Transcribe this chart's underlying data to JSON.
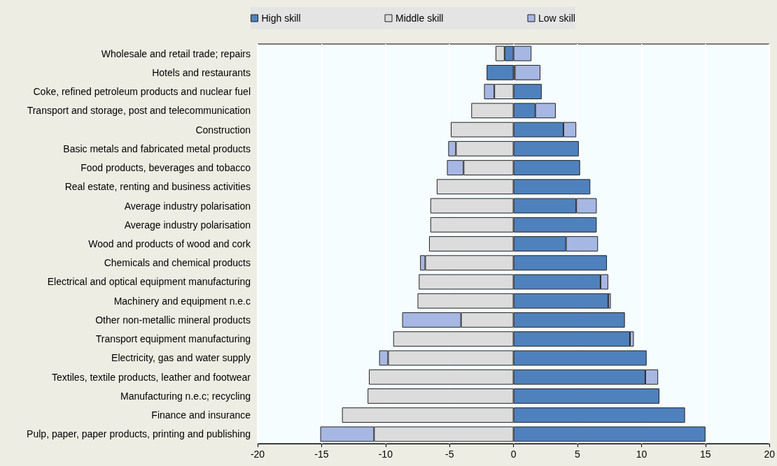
{
  "chart_data": {
    "type": "bar",
    "orientation": "horizontal",
    "stacked": true,
    "legend": "top",
    "grid": "x",
    "categories": [
      "Wholesale and retail trade; repairs",
      "Hotels and restaurants",
      "Coke, refined petroleum products and nuclear fuel",
      "Transport and storage, post and telecommunication",
      "Construction",
      "Basic metals and fabricated metal products",
      "Food products, beverages and tobacco",
      "Real estate, renting and business activities",
      "Average industry polarisation",
      "Average industry polarisation",
      "Wood and products of wood and cork",
      "Chemicals and chemical products",
      "Electrical and optical equipment manufacturing",
      "Machinery and equipment n.e.c",
      "Other non-metallic mineral products",
      "Transport equipment manufacturing",
      "Electricity, gas and water supply",
      "Textiles, textile products, leather and footwear",
      "Manufacturing n.e.c; recycling",
      "Finance and insurance",
      "Pulp, paper, paper products, printing and publishing"
    ],
    "series": [
      {
        "name": "High skill",
        "color": "#4f81bd",
        "values": [
          -0.7,
          -2.1,
          2.2,
          1.7,
          3.9,
          5.1,
          5.2,
          6.0,
          4.9,
          6.5,
          4.1,
          7.3,
          6.8,
          7.4,
          8.7,
          9.1,
          10.4,
          10.3,
          11.4,
          13.4,
          15.0
        ]
      },
      {
        "name": "Middle skill",
        "color": "#dcdcdc",
        "values": [
          -0.7,
          0.1,
          -1.5,
          -3.3,
          -4.9,
          -4.5,
          -3.9,
          -6.0,
          -6.5,
          -6.5,
          -6.6,
          -6.9,
          -7.4,
          -7.5,
          -4.1,
          -9.4,
          -9.8,
          -11.3,
          -11.4,
          -13.4,
          -10.9
        ]
      },
      {
        "name": "Low skill",
        "color": "#a7b7e3",
        "values": [
          1.4,
          2.0,
          -0.8,
          1.6,
          1.0,
          -0.6,
          -1.3,
          null,
          1.6,
          null,
          2.5,
          -0.4,
          0.6,
          0.2,
          -4.6,
          0.3,
          -0.7,
          1.0,
          null,
          null,
          -4.2
        ]
      }
    ],
    "xlim": [
      -20,
      20
    ],
    "xticks": [
      -20,
      -15,
      -10,
      -5,
      0,
      5,
      10,
      15,
      20
    ]
  }
}
